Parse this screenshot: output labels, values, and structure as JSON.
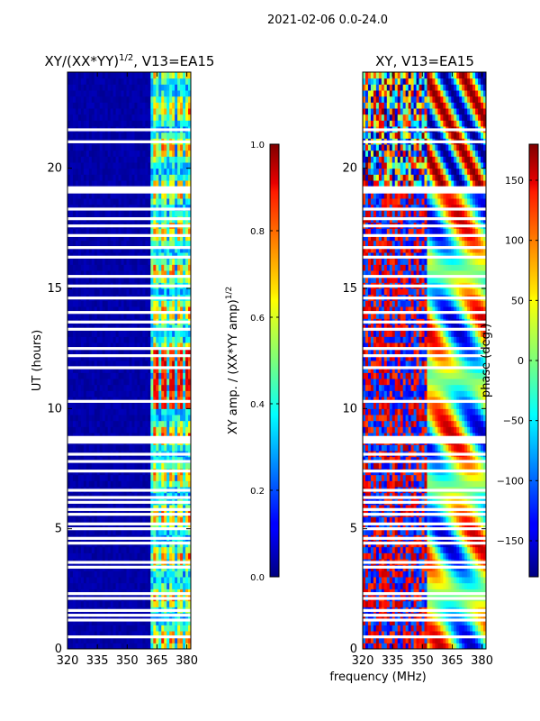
{
  "suptitle": "2021-02-06 0.0-24.0",
  "x_axis_common_label": "frequency (MHz)",
  "colormap": "jet",
  "chart_data": [
    {
      "type": "heatmap",
      "title": "XY/(XX*YY)^1/2, V13=EA15",
      "title_main": "XY/(XX*YY)",
      "title_sup": "1/2",
      "title_tail": ", V13=EA15",
      "xlabel": "frequency (MHz)",
      "ylabel": "UT (hours)",
      "xlim": [
        320,
        382
      ],
      "ylim": [
        0,
        24
      ],
      "xticks": [
        320,
        335,
        350,
        365,
        380
      ],
      "xtick_labels": [
        "320",
        "335",
        "350",
        "365",
        "380"
      ],
      "yticks": [
        0,
        5,
        10,
        15,
        20
      ],
      "ytick_labels": [
        "0",
        "5",
        "10",
        "15",
        "20"
      ],
      "colorbar": {
        "label_main": "XY amp. / (XX*YY amp)",
        "label_sup": "1/2",
        "range": [
          0.0,
          1.0
        ],
        "ticks": [
          0.0,
          0.2,
          0.4,
          0.6,
          0.8,
          1.0
        ],
        "tick_labels": [
          "0.0",
          "0.2",
          "0.4",
          "0.6",
          "0.8",
          "1.0"
        ]
      },
      "description": "Amplitude mostly near 0 below ~360 MHz; 0.3-0.9 in banded structure between ~360 and 380 MHz",
      "flagged_ut_gaps_hours": [
        0.5,
        1.2,
        1.4,
        1.6,
        2.1,
        2.3,
        3.4,
        3.6,
        4.4,
        4.6,
        5.0,
        5.2,
        5.6,
        5.8,
        6.1,
        6.3,
        6.6,
        7.4,
        7.8,
        8.1,
        8.6,
        8.8,
        10.3,
        11.7,
        12.2,
        12.5,
        13.3,
        13.6,
        14.0,
        14.6,
        15.1,
        15.5,
        16.3,
        16.7,
        17.2,
        17.6,
        17.9,
        18.3,
        19.1,
        21.1,
        21.6
      ]
    },
    {
      "type": "heatmap",
      "title": "XY, V13=EA15",
      "xlabel": "frequency (MHz)",
      "ylabel": "",
      "xlim": [
        320,
        382
      ],
      "ylim": [
        0,
        24
      ],
      "xticks": [
        320,
        335,
        350,
        365,
        380
      ],
      "xtick_labels": [
        "320",
        "335",
        "350",
        "365",
        "380"
      ],
      "yticks": [
        0,
        5,
        10,
        15,
        20
      ],
      "ytick_labels": [
        "0",
        "5",
        "10",
        "15",
        "20"
      ],
      "colorbar": {
        "label": "phase (deg.)",
        "range": [
          -180,
          180
        ],
        "ticks": [
          -150,
          -100,
          -50,
          0,
          50,
          100,
          150
        ],
        "tick_labels": [
          "−150",
          "−100",
          "−50",
          "0",
          "50",
          "100",
          "150"
        ]
      },
      "description": "Phase noisy across band; coherent structure near 355-380 MHz",
      "flagged_ut_gaps_hours": [
        0.5,
        1.2,
        1.4,
        1.6,
        2.1,
        2.3,
        3.4,
        3.6,
        4.4,
        4.6,
        5.0,
        5.2,
        5.6,
        5.8,
        6.1,
        6.3,
        6.6,
        7.4,
        7.8,
        8.1,
        8.6,
        8.8,
        10.3,
        11.7,
        12.2,
        12.5,
        13.3,
        13.6,
        14.0,
        14.6,
        15.1,
        15.5,
        16.3,
        16.7,
        17.2,
        17.6,
        17.9,
        18.3,
        19.1,
        21.1,
        21.6
      ]
    }
  ]
}
